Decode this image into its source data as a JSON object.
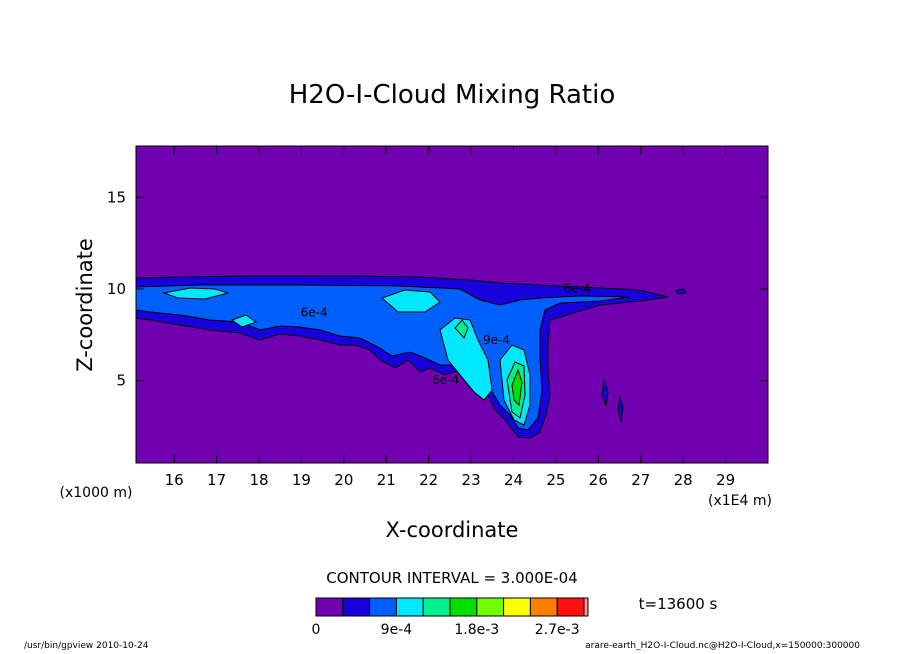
{
  "chart_data": {
    "type": "heatmap",
    "title": "H2O-I-Cloud Mixing Ratio",
    "xlabel": "X-coordinate",
    "ylabel": "Z-coordinate",
    "x_unit_left": "(x1000 m)",
    "x_unit_right": "(x1E4 m)",
    "x_ticks": [
      16,
      17,
      18,
      19,
      20,
      21,
      22,
      23,
      24,
      25,
      26,
      27,
      28,
      29
    ],
    "y_ticks": [
      5,
      10,
      15
    ],
    "xlim": [
      15.1,
      30.0
    ],
    "ylim": [
      0.5,
      17.8
    ],
    "contour_interval_text": "CONTOUR INTERVAL = 3.000E-04",
    "contour_interval": 0.0003,
    "contour_labels": [
      {
        "text": "6e-4",
        "x": 25.5,
        "y": 9.8
      },
      {
        "text": "6e-4",
        "x": 19.3,
        "y": 8.5
      },
      {
        "text": "9e-4",
        "x": 23.6,
        "y": 7.0
      },
      {
        "text": "6e-4",
        "x": 22.4,
        "y": 4.8
      }
    ],
    "time_label": "t=13600 s",
    "colorbar": {
      "colors": [
        "#7000b0",
        "#1800dc",
        "#0060ff",
        "#00e8ff",
        "#00f090",
        "#00e000",
        "#70ff00",
        "#ffff00",
        "#ff8000",
        "#ff1010",
        "#ff9090"
      ],
      "tick_labels": [
        "0",
        "9e-4",
        "1.8e-3",
        "2.7e-3"
      ],
      "tick_values": [
        0,
        0.0009,
        0.0018,
        0.0027
      ]
    }
  },
  "footer": {
    "left": "/usr/bin/gpview   2010-10-24",
    "right": "arare-earth_H2O-I-Cloud.nc@H2O-I-Cloud,x=150000:300000"
  }
}
